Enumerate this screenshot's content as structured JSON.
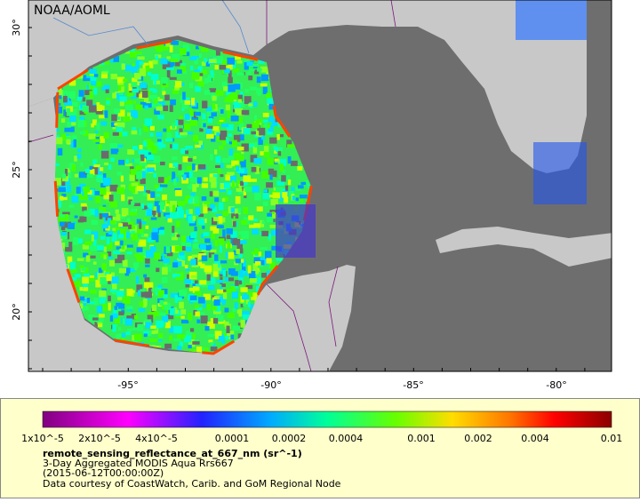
{
  "header": {
    "credit": "NOAA/AOML"
  },
  "map": {
    "lat_labels": [
      "30°",
      "25°",
      "20°"
    ],
    "lon_labels": [
      "-95°",
      "-90°",
      "-85°",
      "-80°"
    ]
  },
  "colorbar": {
    "tick_labels": [
      "1x10^-5",
      "2x10^-5",
      "4x10^-5",
      "0.0001",
      "0.0002",
      "0.0004",
      "0.001",
      "0.002",
      "0.004",
      "0.01"
    ]
  },
  "legend": {
    "title": "remote_sensing_reflectance_at_667_nm (sr^-1)",
    "lines": [
      "3-Day Aggregated MODIS Aqua Rrs667",
      "(2015-06-12T00:00:00Z)",
      "Data courtesy of CoastWatch, Carib. and GoM Regional Node"
    ]
  }
}
